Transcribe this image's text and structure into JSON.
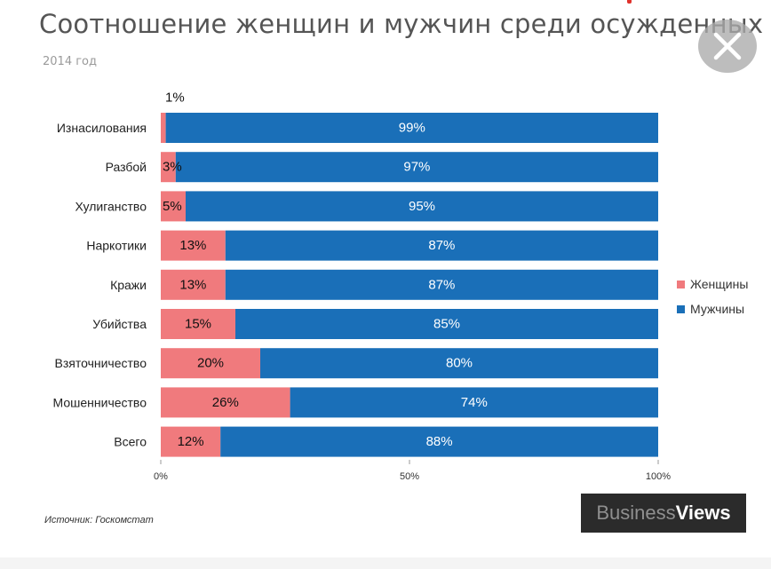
{
  "title": "Соотношение женщин и мужчин среди осужденных",
  "subtitle": "2014 год",
  "source": "Источник: Госкомстат",
  "logo": {
    "part1": "Business",
    "part2": "Views"
  },
  "colors": {
    "women": "#f07a7d",
    "men": "#1a6fb8"
  },
  "chart_data": {
    "type": "bar",
    "orientation": "horizontal",
    "stacked": "100%",
    "categories": [
      "Изнасилования",
      "Разбой",
      "Хулиганство",
      "Наркотики",
      "Кражи",
      "Убийства",
      "Взяточничество",
      "Мошенничество",
      "Всего"
    ],
    "series": [
      {
        "name": "Женщины",
        "color": "#f07a7d",
        "values": [
          1,
          3,
          5,
          13,
          13,
          15,
          20,
          26,
          12
        ],
        "labels": [
          "1%",
          "3%",
          "5%",
          "13%",
          "13%",
          "15%",
          "20%",
          "26%",
          "12%"
        ]
      },
      {
        "name": "Мужчины",
        "color": "#1a6fb8",
        "values": [
          99,
          97,
          95,
          87,
          87,
          85,
          80,
          74,
          88
        ],
        "labels": [
          "99%",
          "97%",
          "95%",
          "87%",
          "87%",
          "85%",
          "80%",
          "74%",
          "88%"
        ]
      }
    ],
    "xticks": [
      "0%",
      "50%",
      "100%"
    ],
    "xlim": [
      0,
      100
    ],
    "legend": "right",
    "grid": false
  }
}
